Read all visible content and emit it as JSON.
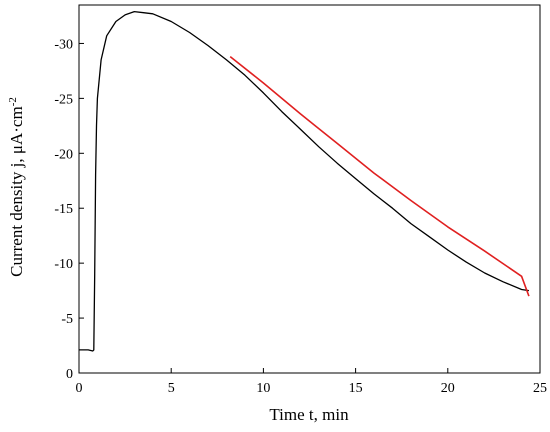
{
  "chart_data": {
    "type": "line",
    "title": "",
    "xlabel": "Time t, min",
    "ylabel": {
      "text": "Current density j, μA·cm",
      "superscript": "-2"
    },
    "xlim": [
      0,
      25
    ],
    "ylim": [
      0,
      33.5
    ],
    "x_ticks": [
      {
        "value": 0,
        "label": "0"
      },
      {
        "value": 5,
        "label": "5"
      },
      {
        "value": 10,
        "label": "10"
      },
      {
        "value": 15,
        "label": "15"
      },
      {
        "value": 20,
        "label": "20"
      },
      {
        "value": 25,
        "label": "25"
      }
    ],
    "y_ticks": [
      {
        "value": 0,
        "label": "0"
      },
      {
        "value": 5,
        "label": "-5"
      },
      {
        "value": 10,
        "label": "-10"
      },
      {
        "value": 15,
        "label": "-15"
      },
      {
        "value": 20,
        "label": "-20"
      },
      {
        "value": 25,
        "label": "-25"
      },
      {
        "value": 30,
        "label": "-30"
      }
    ],
    "grid": false,
    "legend": "none",
    "series": [
      {
        "color": "#000000",
        "kind": "measured",
        "x": [
          0,
          0.5,
          0.75,
          0.8,
          0.85,
          0.9,
          0.95,
          1.0,
          1.2,
          1.5,
          2.0,
          2.5,
          3.0,
          3.5,
          4.0,
          5.0,
          6.0,
          7.0,
          8.0,
          9.0,
          10.0,
          11.0,
          12.0,
          13.0,
          14.0,
          15.0,
          16.0,
          17.0,
          18.0,
          19.0,
          20.0,
          21.0,
          22.0,
          23.0,
          24.0,
          24.4
        ],
        "y": [
          2.1,
          2.1,
          2.0,
          2.1,
          9.0,
          18.0,
          22.5,
          25.0,
          28.5,
          30.7,
          32.0,
          32.6,
          32.9,
          32.8,
          32.7,
          32.0,
          31.0,
          29.8,
          28.5,
          27.1,
          25.5,
          23.8,
          22.2,
          20.6,
          19.1,
          17.7,
          16.3,
          15.0,
          13.6,
          12.4,
          11.2,
          10.1,
          9.1,
          8.3,
          7.6,
          7.5
        ]
      },
      {
        "color": "#e02020",
        "kind": "fit",
        "x": [
          8.2,
          10,
          12,
          14,
          16,
          18,
          20,
          22,
          24,
          24.4
        ],
        "y": [
          28.8,
          26.4,
          23.6,
          20.9,
          18.2,
          15.7,
          13.3,
          11.1,
          8.8,
          7.0
        ]
      }
    ]
  }
}
